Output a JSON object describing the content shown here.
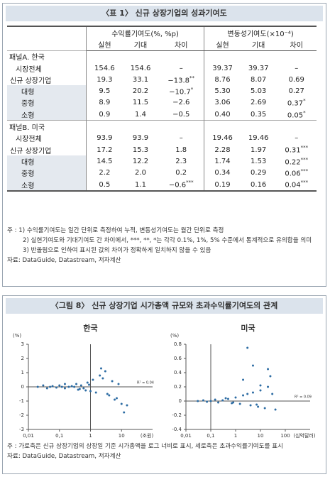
{
  "table_title": "〈표 1〉 신규 상장기업의 성과기여도",
  "table": {
    "groups": [
      "수익률기여도(%, %p)",
      "변동성기여도(×10⁻⁴)"
    ],
    "columns": [
      "실현",
      "기대",
      "차이",
      "실현",
      "기대",
      "차이"
    ],
    "sections": [
      {
        "title": "패널A. 한국",
        "rows": [
          {
            "label": "시장전체",
            "cells": [
              "154.6",
              "154.6",
              "–",
              "39.37",
              "39.37",
              "–"
            ]
          },
          {
            "label": "신규 상장기업",
            "cells": [
              "19.3",
              "33.1",
              "−13.8**",
              "8.76",
              "8.07",
              "0.69"
            ],
            "breakdown": [
              {
                "label": "대형",
                "cells": [
                  "9.5",
                  "20.2",
                  "−10.7*",
                  "5.30",
                  "5.03",
                  "0.27"
                ]
              },
              {
                "label": "중형",
                "cells": [
                  "8.9",
                  "11.5",
                  "−2.6",
                  "3.06",
                  "2.69",
                  "0.37*"
                ]
              },
              {
                "label": "소형",
                "cells": [
                  "0.9",
                  "1.4",
                  "−0.5",
                  "0.40",
                  "0.35",
                  "0.05*"
                ]
              }
            ]
          }
        ]
      },
      {
        "title": "패널B. 미국",
        "rows": [
          {
            "label": "시장전체",
            "cells": [
              "93.9",
              "93.9",
              "–",
              "19.46",
              "19.46",
              "–"
            ]
          },
          {
            "label": "신규 상장기업",
            "cells": [
              "17.2",
              "15.3",
              "1.8",
              "2.28",
              "1.97",
              "0.31***"
            ],
            "breakdown": [
              {
                "label": "대형",
                "cells": [
                  "14.5",
                  "12.2",
                  "2.3",
                  "1.74",
                  "1.53",
                  "0.22***"
                ]
              },
              {
                "label": "중형",
                "cells": [
                  "2.2",
                  "2.0",
                  "0.2",
                  "0.34",
                  "0.29",
                  "0.06***"
                ]
              },
              {
                "label": "소형",
                "cells": [
                  "0.5",
                  "1.1",
                  "−0.6***",
                  "0.19",
                  "0.16",
                  "0.04***"
                ]
              }
            ]
          }
        ]
      }
    ]
  },
  "table_notes": [
    "주 : 1) 수익률기여도는 일간 단위로 측정하여 누적, 변동성기여도는 월간 단위로 측정",
    "2) 실현기여도와 기대기여도 간 차이에서, ***, **, *는 각각 0.1%, 1%, 5% 수준에서 통계적으로 유의함을 의미",
    "3) 반올림으로 인하여 표시된 값의 차이가 정확하게 일치하지 않을 수 있음",
    "자료: DataGuide, Datastream, 저자계산"
  ],
  "figure": {
    "title": "〈그림 8〉 신규 상장기업 시가총액 규모와 초과수익률기여도의 관계",
    "charts": [
      {
        "type": "scatter",
        "title": "한국",
        "y_label": "(%)",
        "x_unit": "(조원)",
        "log_x": true,
        "color": "#2e6da4",
        "divider_x": 1,
        "annotation": "R² = 0.04",
        "xlim": [
          0.01,
          100
        ],
        "ylim": [
          -3,
          3
        ],
        "xticks": [
          {
            "value": 0.01,
            "label": "0,01"
          },
          {
            "value": 0.1,
            "label": "0,1"
          },
          1,
          10
        ],
        "yticks": [
          3,
          2,
          1,
          0,
          -1,
          -2,
          -3
        ],
        "x": [
          0.02,
          0.03,
          0.04,
          0.05,
          0.06,
          0.08,
          0.1,
          0.12,
          0.15,
          0.2,
          0.25,
          0.3,
          0.4,
          0.5,
          0.6,
          0.8,
          1,
          1.2,
          1.5,
          2,
          2.5,
          3,
          4,
          5,
          6,
          8,
          10,
          12,
          15,
          0.35,
          0.45,
          0.7,
          0.9,
          2.2,
          3.5,
          7,
          0.15
        ],
        "y": [
          0,
          0.1,
          -0.1,
          0,
          0.05,
          -0.05,
          0.1,
          0,
          -0.1,
          0,
          0.05,
          0,
          -0.2,
          0.1,
          -0.1,
          0.3,
          -0.3,
          0.5,
          -0.4,
          0.8,
          0.6,
          1.1,
          -0.6,
          0.4,
          -0.9,
          0.2,
          -1.2,
          -1.8,
          -1.3,
          0.2,
          -0.15,
          -0.25,
          0.15,
          1.3,
          -0.5,
          -0.8,
          0.2
        ]
      },
      {
        "type": "scatter",
        "title": "미국",
        "y_label": "(%)",
        "x_unit": "(십억달러)",
        "log_x": true,
        "color": "#2e6da4",
        "divider_x": 0.1,
        "annotation": "R² = 0.09",
        "xlim": [
          0.01,
          1000
        ],
        "ylim": [
          -0.4,
          0.8
        ],
        "xticks": [
          {
            "value": 0.01,
            "label": "0,01"
          },
          {
            "value": 0.1,
            "label": "0,1"
          },
          1,
          10,
          100
        ],
        "yticks": [
          0.8,
          0.6,
          0.4,
          0.2,
          0,
          -0.2,
          -0.4
        ],
        "x": [
          0.03,
          0.05,
          0.07,
          0.1,
          0.15,
          0.2,
          0.3,
          0.5,
          0.7,
          1,
          1.5,
          2,
          3,
          4,
          5,
          7,
          10,
          15,
          20,
          30,
          3,
          5,
          20,
          25,
          2,
          10,
          0.4,
          0.8,
          8,
          40
        ],
        "y": [
          0,
          0.01,
          -0.01,
          0,
          0.02,
          -0.02,
          0.01,
          0.03,
          -0.03,
          0.05,
          -0.04,
          0.08,
          0.1,
          -0.06,
          0.12,
          -0.05,
          0.15,
          -0.1,
          0.2,
          0.1,
          0.75,
          0.5,
          0.45,
          0.35,
          0.3,
          0.22,
          0.04,
          -0.02,
          -0.08,
          -0.12
        ]
      }
    ]
  },
  "figure_notes": [
    "주 : 가로축은 신규 상장기업의 상장일 기준 시가총액을 로그 너비로 표시, 세로축은 초과수익률기여도를 표시",
    "자료: DataGuide, Datastream, 저자계산"
  ]
}
